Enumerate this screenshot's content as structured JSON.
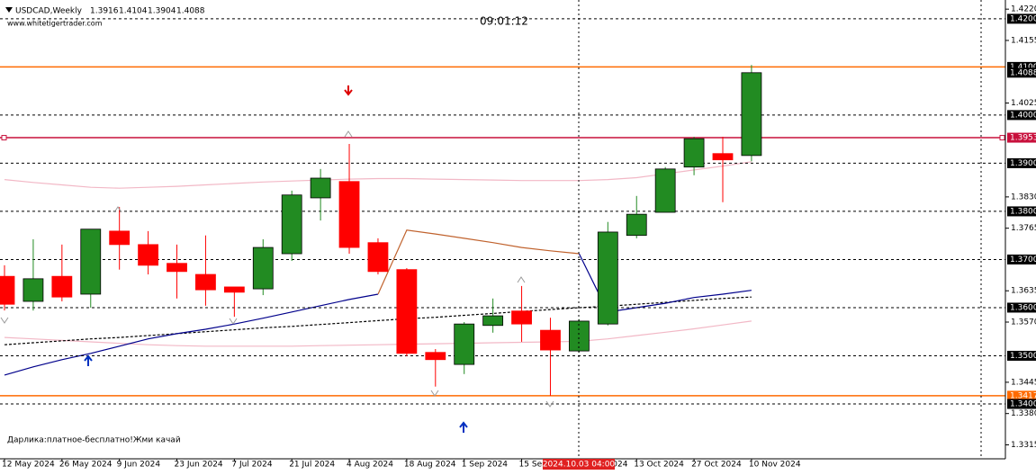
{
  "chart_data": {
    "type": "candlestick",
    "title": "USDCAD,Weekly",
    "website": "www.whitetigertrader.com",
    "timer": "09:01:12",
    "footer_text": "Дарлика:платное-бесплатно!Жми качай",
    "crosshair_time": "2024.10.03 04:00",
    "categories": [
      "12 May 2024",
      null,
      "26 May 2024",
      null,
      "9 Jun 2024",
      null,
      "23 Jun 2024",
      null,
      "7 Jul 2024",
      null,
      "21 Jul 2024",
      null,
      "4 Aug 2024",
      null,
      "18 Aug 2024",
      null,
      "1 Sep 2024",
      null,
      "15 Sep 2024",
      null,
      "29 Sep 2024",
      null,
      "13 Oct 2024",
      null,
      "27 Oct 2024",
      null,
      "10 Nov 2024"
    ],
    "open": [
      1.3665,
      1.3613,
      1.3665,
      1.3628,
      1.3759,
      1.3731,
      1.3692,
      1.3669,
      1.3643,
      1.3639,
      1.3712,
      1.3828,
      1.3862,
      1.3735,
      1.3679,
      1.3507,
      1.3482,
      1.3563,
      1.3593,
      1.3553,
      1.351,
      1.3566,
      1.375,
      1.3798,
      1.3892,
      1.392,
      1.3916
    ],
    "high": [
      1.3688,
      1.3742,
      1.3731,
      1.3763,
      1.3809,
      1.3759,
      1.3731,
      1.375,
      1.3643,
      1.3742,
      1.3843,
      1.3888,
      1.394,
      1.3744,
      1.3682,
      1.3514,
      1.357,
      1.3619,
      1.3645,
      1.3579,
      1.3576,
      1.3778,
      1.3832,
      1.3892,
      1.3955,
      1.3955,
      1.4104
    ],
    "low": [
      1.3594,
      1.3594,
      1.3613,
      1.36,
      1.3679,
      1.3669,
      1.3619,
      1.3604,
      1.3581,
      1.3626,
      1.3697,
      1.3781,
      1.3712,
      1.3669,
      1.3499,
      1.3436,
      1.3462,
      1.3548,
      1.3529,
      1.3417,
      1.3507,
      1.3563,
      1.3744,
      1.3798,
      1.3875,
      1.3819,
      1.3904
    ],
    "close": [
      1.3607,
      1.366,
      1.3622,
      1.3763,
      1.3731,
      1.3688,
      1.3675,
      1.3637,
      1.3632,
      1.3725,
      1.3834,
      1.3869,
      1.3725,
      1.3675,
      1.3505,
      1.3492,
      1.3566,
      1.3583,
      1.3566,
      1.3512,
      1.3572,
      1.3757,
      1.3794,
      1.3888,
      1.3951,
      1.3907,
      1.4088
    ],
    "up_color": "#228b22",
    "down_color": "#ff0000",
    "ylim": [
      1.3286,
      1.4239
    ],
    "yticks": [
      {
        "value": 1.422,
        "label": "1.4220"
      },
      {
        "value": 1.4155,
        "label": "1.4155"
      },
      {
        "value": 1.4025,
        "label": "1.4025"
      },
      {
        "value": 1.383,
        "label": "1.3830"
      },
      {
        "value": 1.3765,
        "label": "1.3765"
      },
      {
        "value": 1.3635,
        "label": "1.3635"
      },
      {
        "value": 1.357,
        "label": "1.3570"
      },
      {
        "value": 1.3445,
        "label": "1.3445"
      },
      {
        "value": 1.338,
        "label": "1.3380"
      },
      {
        "value": 1.3315,
        "label": "1.3315"
      }
    ],
    "levels": [
      {
        "value": 1.42,
        "label": "1.4200",
        "style": "dashed",
        "color": "#000000",
        "label_bg": "#000000"
      },
      {
        "value": 1.41,
        "label": "1.4100",
        "style": "solid",
        "color": "#ff6a00",
        "label_bg": "#000000"
      },
      {
        "value": 1.4,
        "label": "1.4000",
        "style": "dashed",
        "color": "#000000",
        "label_bg": "#000000"
      },
      {
        "value": 1.3953,
        "label": "1.3953",
        "style": "solid",
        "color": "#c8103c",
        "label_bg": "#c8103c"
      },
      {
        "value": 1.39,
        "label": "1.3900",
        "style": "dashed",
        "color": "#000000",
        "label_bg": "#000000"
      },
      {
        "value": 1.38,
        "label": "1.3800",
        "style": "dashed",
        "color": "#000000",
        "label_bg": "#000000"
      },
      {
        "value": 1.37,
        "label": "1.3700",
        "style": "dashed",
        "color": "#000000",
        "label_bg": "#000000"
      },
      {
        "value": 1.36,
        "label": "1.3600",
        "style": "dashed",
        "color": "#000000",
        "label_bg": "#000000"
      },
      {
        "value": 1.35,
        "label": "1.3500",
        "style": "dashed",
        "color": "#000000",
        "label_bg": "#000000"
      },
      {
        "value": 1.3417,
        "label": "1.3417",
        "style": "solid",
        "color": "#ff6a00",
        "label_bg": "#ff6a00"
      },
      {
        "value": 1.34,
        "label": "1.3400",
        "style": "dashed",
        "color": "#000000",
        "label_bg": "#000000"
      }
    ],
    "lines": [
      {
        "color": "#f2b8c6",
        "dash": false,
        "values": [
          1.3866,
          1.386,
          1.3855,
          1.385,
          1.3848,
          1.385,
          1.3852,
          1.3855,
          1.3858,
          1.3861,
          1.3863,
          1.3865,
          1.3867,
          1.3868,
          1.3868,
          1.3867,
          1.3866,
          1.3865,
          1.3864,
          1.3864,
          1.3864,
          1.3866,
          1.387,
          1.3878,
          1.3886,
          1.3894,
          1.3903
        ]
      },
      {
        "color": "#f2b8c6",
        "dash": false,
        "values": [
          1.3538,
          1.3535,
          1.3532,
          1.3529,
          1.3526,
          1.3523,
          1.3521,
          1.352,
          1.352,
          1.352,
          1.352,
          1.3521,
          1.3522,
          1.3523,
          1.3524,
          1.3525,
          1.3526,
          1.3527,
          1.3528,
          1.3529,
          1.353,
          1.3535,
          1.3542,
          1.3549,
          1.3556,
          1.3564,
          1.3572
        ]
      },
      {
        "color": "#000000",
        "dash": true,
        "values": [
          1.3523,
          1.3527,
          1.3531,
          1.3535,
          1.3538,
          1.3542,
          1.3546,
          1.355,
          1.3554,
          1.3558,
          1.3561,
          1.3565,
          1.3569,
          1.3573,
          1.3577,
          1.358,
          1.3584,
          1.3588,
          1.3592,
          1.3596,
          1.36,
          1.3603,
          1.3607,
          1.3611,
          1.3615,
          1.3619,
          1.3622
        ]
      },
      {
        "color": "#00008b",
        "dash": false,
        "values": [
          1.346,
          1.3477,
          1.3492,
          1.3505,
          1.352,
          1.3535,
          1.3546,
          1.3555,
          1.3566,
          1.3578,
          1.3591,
          1.3604,
          1.3617,
          1.3628,
          null,
          null,
          null,
          null,
          null,
          null,
          1.3712,
          1.3591,
          1.36,
          1.3609,
          1.3621,
          1.3628,
          1.3636
        ]
      },
      {
        "color": "#c0622d",
        "dash": false,
        "values": [
          null,
          null,
          null,
          null,
          null,
          null,
          null,
          null,
          null,
          null,
          null,
          null,
          null,
          1.3628,
          1.3761,
          1.3753,
          1.3744,
          1.3735,
          1.3725,
          1.3718,
          1.3712,
          null,
          null,
          null,
          null,
          null,
          null
        ]
      }
    ]
  }
}
